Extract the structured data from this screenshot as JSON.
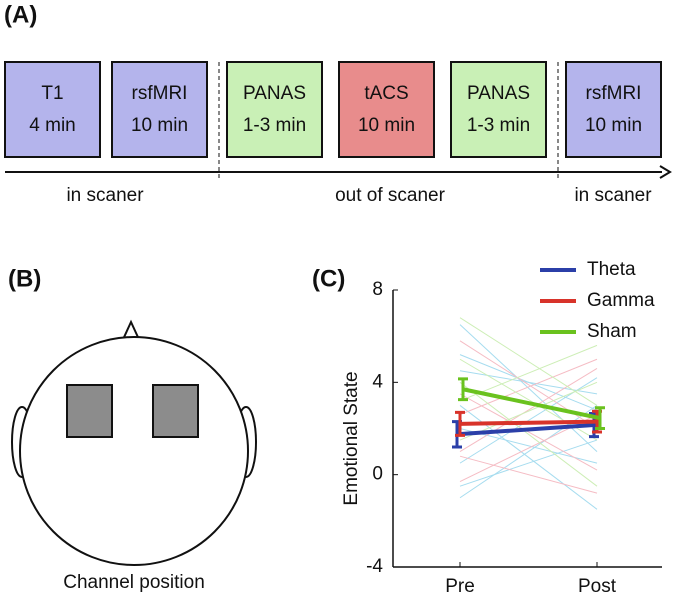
{
  "panel_a": {
    "label": "(A)",
    "blocks": [
      {
        "name": "T1",
        "duration": "4 min",
        "color": "#b4b4ec"
      },
      {
        "name": "rsfMRI",
        "duration": "10 min",
        "color": "#b4b4ec"
      },
      {
        "name": "PANAS",
        "duration": "1-3 min",
        "color": "#c9f0b6"
      },
      {
        "name": "tACS",
        "duration": "10 min",
        "color": "#e88c8c"
      },
      {
        "name": "PANAS",
        "duration": "1-3 min",
        "color": "#c9f0b6"
      },
      {
        "name": "rsfMRI",
        "duration": "10 min",
        "color": "#b4b4ec"
      }
    ],
    "phases": [
      "in scaner",
      "out of scaner",
      "in scaner"
    ]
  },
  "panel_b": {
    "label": "(B)",
    "caption": "Channel position"
  },
  "chart_data": {
    "type": "line",
    "panel_label": "(C)",
    "y_label": "Emotional State",
    "categories": [
      "Pre",
      "Post"
    ],
    "ylim": [
      -4,
      8
    ],
    "yticks": [
      -4,
      0,
      4,
      8
    ],
    "legend": "top-right",
    "series": [
      {
        "name": "Theta",
        "color": "#2b3fa8",
        "values": [
          1.75,
          2.15
        ],
        "errors": [
          0.55,
          0.5
        ]
      },
      {
        "name": "Gamma",
        "color": "#d8332a",
        "values": [
          2.2,
          2.3
        ],
        "errors": [
          0.5,
          0.45
        ]
      },
      {
        "name": "Sham",
        "color": "#6ac21e",
        "values": [
          3.7,
          2.45
        ],
        "errors": [
          0.45,
          0.45
        ]
      }
    ],
    "subject_lines": [
      {
        "color": "#a6dcef",
        "values": [
          6.5,
          1.0
        ]
      },
      {
        "color": "#a6dcef",
        "values": [
          5.2,
          2.8
        ]
      },
      {
        "color": "#a6dcef",
        "values": [
          0.5,
          4.2
        ]
      },
      {
        "color": "#a6dcef",
        "values": [
          -1.0,
          3.0
        ]
      },
      {
        "color": "#a6dcef",
        "values": [
          3.0,
          -1.5
        ]
      },
      {
        "color": "#a6dcef",
        "values": [
          2.0,
          0.5
        ]
      },
      {
        "color": "#a6dcef",
        "values": [
          -0.5,
          1.5
        ]
      },
      {
        "color": "#a6dcef",
        "values": [
          4.5,
          3.5
        ]
      },
      {
        "color": "#f5bcc4",
        "values": [
          5.8,
          2.0
        ]
      },
      {
        "color": "#f5bcc4",
        "values": [
          1.0,
          4.6
        ]
      },
      {
        "color": "#f5bcc4",
        "values": [
          3.5,
          0.2
        ]
      },
      {
        "color": "#f5bcc4",
        "values": [
          -0.3,
          2.6
        ]
      },
      {
        "color": "#f5bcc4",
        "values": [
          2.6,
          5.0
        ]
      },
      {
        "color": "#f5bcc4",
        "values": [
          0.8,
          -0.8
        ]
      },
      {
        "color": "#cdeeb6",
        "values": [
          6.8,
          3.0
        ]
      },
      {
        "color": "#cdeeb6",
        "values": [
          5.0,
          1.5
        ]
      },
      {
        "color": "#cdeeb6",
        "values": [
          1.5,
          4.0
        ]
      },
      {
        "color": "#cdeeb6",
        "values": [
          4.0,
          -0.5
        ]
      },
      {
        "color": "#cdeeb6",
        "values": [
          3.2,
          5.6
        ]
      }
    ]
  }
}
